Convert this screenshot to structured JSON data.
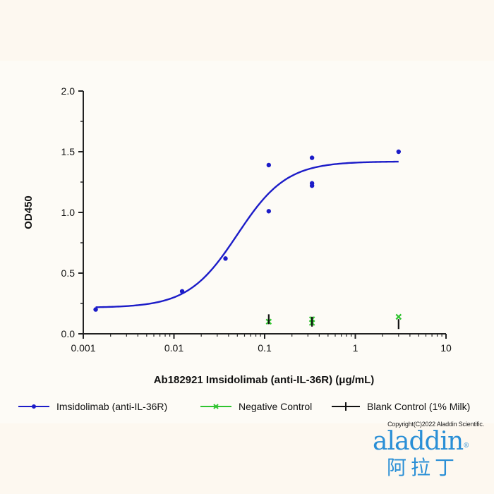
{
  "chart_data": {
    "type": "scatter",
    "xscale": "log",
    "xlim": [
      0.001,
      10
    ],
    "ylim": [
      0,
      2.0
    ],
    "xticks": [
      0.001,
      0.01,
      0.1,
      1,
      10
    ],
    "xtick_labels": [
      "0.001",
      "0.01",
      "0.1",
      "1",
      "10"
    ],
    "yticks": [
      0,
      0.5,
      1.0,
      1.5,
      2.0
    ],
    "ytick_labels": [
      "0.0",
      "0.5",
      "1.0",
      "1.5",
      "2.0"
    ],
    "xlabel": "Ab182921 Imsidolimab (anti-IL-36R) (μg/mL)",
    "ylabel": "OD450",
    "series": [
      {
        "name": "Imsidolimab (anti-IL-36R)",
        "color": "#1c1cc8",
        "marker": "circle",
        "points": [
          [
            0.00137,
            0.2
          ],
          [
            0.0123,
            0.35
          ],
          [
            0.037,
            0.62
          ],
          [
            0.111,
            1.39
          ],
          [
            0.111,
            1.01
          ],
          [
            0.333,
            1.45
          ],
          [
            0.333,
            1.22
          ],
          [
            0.333,
            1.24
          ],
          [
            3.0,
            1.5
          ]
        ],
        "fit": {
          "model": "4PL",
          "bottom": 0.215,
          "top": 1.42,
          "ec50": 0.05,
          "hill": 1.6,
          "x_range": [
            0.00137,
            3.0
          ]
        }
      },
      {
        "name": "Negative Control",
        "color": "#2fc42f",
        "marker": "x",
        "points": [
          [
            0.111,
            0.1
          ],
          [
            0.333,
            0.12
          ],
          [
            0.333,
            0.09
          ],
          [
            3.0,
            0.14
          ]
        ]
      },
      {
        "name": "Blank Control (1% Milk)",
        "color": "#111111",
        "marker": "plus",
        "points": [
          [
            0.111,
            0.12
          ],
          [
            0.333,
            0.1
          ],
          [
            3.0,
            0.08
          ]
        ]
      }
    ]
  },
  "footer": {
    "copyright": "Copyright(C)2022 Aladdin Scientific.",
    "logo_latin": "aladdin",
    "logo_reg": "®",
    "logo_cn": "阿拉丁"
  }
}
